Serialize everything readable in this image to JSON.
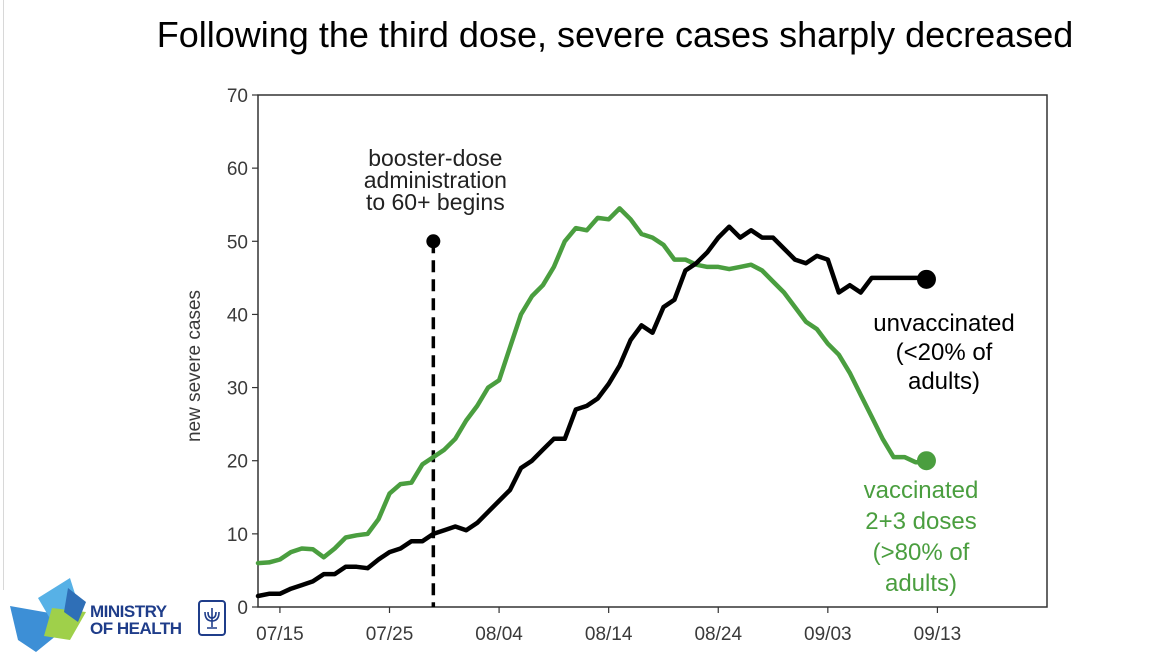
{
  "slide_title": "Following the third dose, severe cases sharply decreased",
  "logo": {
    "line1": "MINISTRY",
    "line2": "OF HEALTH",
    "icon": "menorah-emblem-icon"
  },
  "chart_data": {
    "type": "line",
    "ylabel": "new severe cases",
    "xlabel": "",
    "ylim": [
      0,
      70
    ],
    "yticks": [
      0,
      10,
      20,
      30,
      40,
      50,
      60,
      70
    ],
    "x_start_label": "07/13",
    "xlim_days": [
      0,
      72
    ],
    "xticks": [
      {
        "day": 2,
        "label": "07/15"
      },
      {
        "day": 12,
        "label": "07/25"
      },
      {
        "day": 22,
        "label": "08/04"
      },
      {
        "day": 32,
        "label": "08/14"
      },
      {
        "day": 42,
        "label": "08/24"
      },
      {
        "day": 52,
        "label": "09/03"
      },
      {
        "day": 62,
        "label": "09/13"
      }
    ],
    "series": [
      {
        "name": "vaccinated 2+3 doses",
        "label_lines": [
          "vaccinated",
          "2+3 doses",
          "(>80% of",
          "adults)"
        ],
        "color": "#4a9e3f",
        "x": [
          0,
          1,
          2,
          3,
          4,
          5,
          6,
          7,
          8,
          9,
          10,
          11,
          12,
          13,
          14,
          15,
          16,
          17,
          18,
          19,
          20,
          21,
          22,
          23,
          24,
          25,
          26,
          27,
          28,
          29,
          30,
          31,
          32,
          33,
          34,
          35,
          36,
          37,
          38,
          39,
          40,
          41,
          42,
          43,
          44,
          45,
          46,
          47,
          48,
          49,
          50,
          51,
          52,
          53,
          54,
          55,
          56,
          57,
          58,
          59,
          60,
          61
        ],
        "values": [
          6,
          6.1,
          6.5,
          7.5,
          8,
          7.9,
          6.8,
          8,
          9.5,
          9.8,
          10,
          12,
          15.5,
          16.8,
          17,
          19.5,
          20.5,
          21.5,
          23,
          25.5,
          27.5,
          30,
          31,
          35.5,
          40,
          42.5,
          44,
          46.5,
          50,
          51.8,
          51.5,
          53.2,
          53,
          54.5,
          53,
          51,
          50.5,
          49.5,
          47.5,
          47.5,
          46.8,
          46.5,
          46.5,
          46.2,
          46.5,
          46.8,
          46,
          44.5,
          43,
          41,
          39,
          38,
          36,
          34.5,
          32,
          29,
          26,
          23,
          20.5,
          20.5,
          19.8,
          19.8
        ],
        "end_marker_value": 20
      },
      {
        "name": "unvaccinated",
        "label_lines": [
          "unvaccinated",
          "(<20% of",
          "adults)"
        ],
        "color": "#000000",
        "x": [
          0,
          1,
          2,
          3,
          4,
          5,
          6,
          7,
          8,
          9,
          10,
          11,
          12,
          13,
          14,
          15,
          16,
          17,
          18,
          19,
          20,
          21,
          22,
          23,
          24,
          25,
          26,
          27,
          28,
          29,
          30,
          31,
          32,
          33,
          34,
          35,
          36,
          37,
          38,
          39,
          40,
          41,
          42,
          43,
          44,
          45,
          46,
          47,
          48,
          49,
          50,
          51,
          52,
          53,
          54,
          55,
          56,
          57,
          58,
          59,
          60,
          61
        ],
        "values": [
          1.5,
          1.8,
          1.8,
          2.5,
          3,
          3.5,
          4.5,
          4.5,
          5.5,
          5.5,
          5.3,
          6.5,
          7.5,
          8,
          9,
          9,
          10,
          10.5,
          11,
          10.5,
          11.5,
          13,
          14.5,
          16,
          19,
          20,
          21.5,
          23,
          23,
          27,
          27.5,
          28.5,
          30.5,
          33,
          36.5,
          38.5,
          37.5,
          41,
          42,
          46,
          47,
          48.5,
          50.5,
          52,
          50.5,
          51.5,
          50.5,
          50.5,
          49,
          47.5,
          47,
          48,
          47.5,
          43,
          44,
          43,
          45,
          45,
          45,
          45,
          45,
          45
        ],
        "end_marker_value": 44.8
      }
    ],
    "annotations": [
      {
        "type": "vline",
        "day": 16,
        "style": "dashed",
        "marker_value": 50,
        "text_lines": [
          "booster-dose",
          "administration",
          "to 60+ begins"
        ]
      }
    ],
    "grid": false,
    "legend": "none (inline labels at right)"
  }
}
